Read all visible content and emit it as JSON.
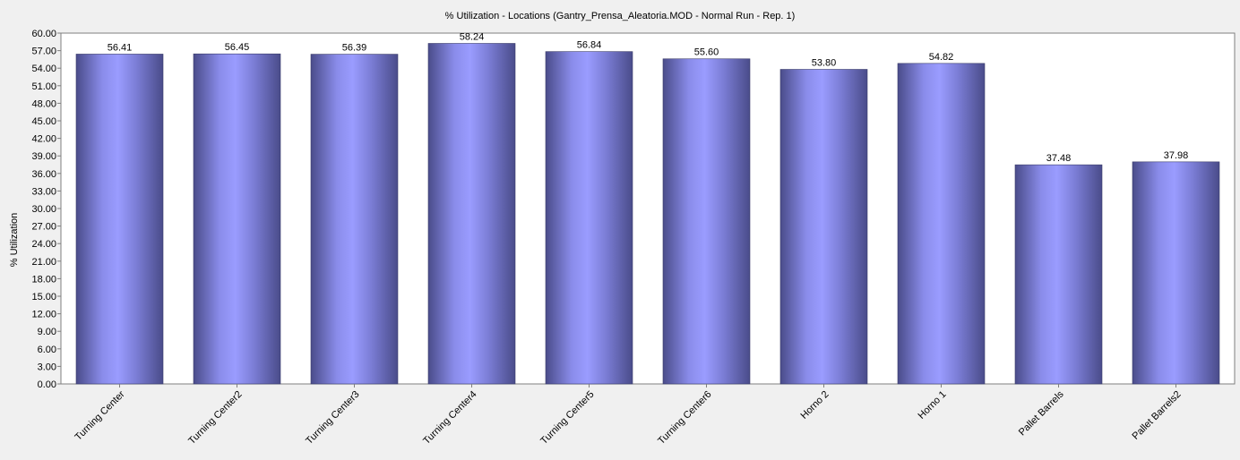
{
  "chart_data": {
    "type": "bar",
    "title": "% Utilization - Locations (Gantry_Prensa_Aleatoria.MOD - Normal Run - Rep. 1)",
    "xlabel": "",
    "ylabel": "% Utilization",
    "ylim": [
      0,
      60
    ],
    "y_ticks": [
      "0.00",
      "3.00",
      "6.00",
      "9.00",
      "12.00",
      "15.00",
      "18.00",
      "21.00",
      "24.00",
      "27.00",
      "30.00",
      "33.00",
      "36.00",
      "39.00",
      "42.00",
      "45.00",
      "48.00",
      "51.00",
      "54.00",
      "57.00",
      "60.00"
    ],
    "categories": [
      "Turning Center",
      "Turning Center2",
      "Turning Center3",
      "Turning Center4",
      "Turning Center5",
      "Turning Center6",
      "Horno 2",
      "Horno 1",
      "Pallet Barrels",
      "Pallet Barrels2"
    ],
    "values": [
      56.41,
      56.45,
      56.39,
      58.24,
      56.84,
      55.6,
      53.8,
      54.82,
      37.48,
      37.98
    ],
    "value_labels": [
      "56.41",
      "56.45",
      "56.39",
      "58.24",
      "56.84",
      "55.60",
      "53.80",
      "54.82",
      "37.48",
      "37.98"
    ],
    "grid": false,
    "legend": "none",
    "colors": {
      "bar_light": "#9a9cff",
      "bar_dark": "#4a4c8a",
      "plot_bg": "#ffffff",
      "page_bg": "#f0f0f0",
      "axis": "#7f7f7f"
    }
  }
}
